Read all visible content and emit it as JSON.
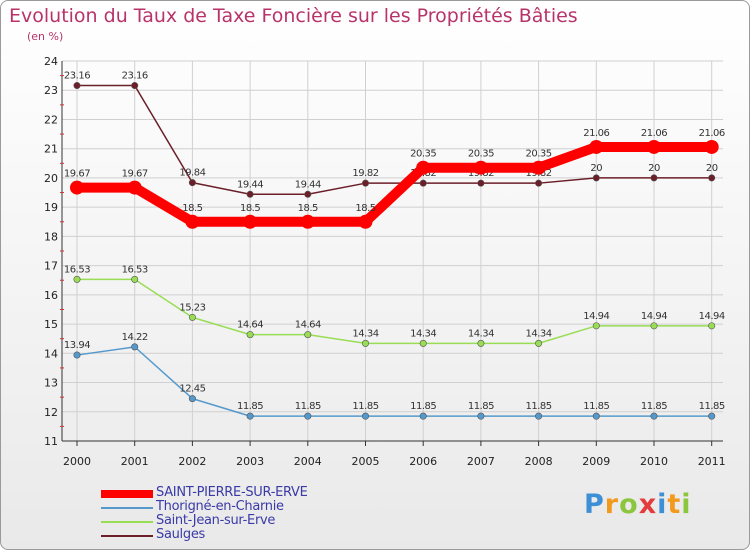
{
  "chart_data": {
    "type": "line",
    "title": "Evolution du Taux de Taxe Foncière sur les Propriétés Bâties",
    "subtitle": "(en %)",
    "xlabel": "",
    "ylabel": "",
    "ylim": [
      11,
      24
    ],
    "yticks": [
      "11",
      "12",
      "13",
      "14",
      "15",
      "16",
      "17",
      "18",
      "19",
      "20",
      "21",
      "22",
      "23",
      "24"
    ],
    "categories": [
      "2000",
      "2001",
      "2002",
      "2003",
      "2004",
      "2005",
      "2006",
      "2007",
      "2008",
      "2009",
      "2010",
      "2011"
    ],
    "series": [
      {
        "name": "Saulges",
        "color": "#6b1f28",
        "values": [
          23.16,
          23.16,
          19.84,
          19.44,
          19.44,
          19.82,
          19.82,
          19.82,
          19.82,
          20,
          20,
          20
        ],
        "labels": [
          "23.16",
          "23.16",
          "19.84",
          "19.44",
          "19.44",
          "19.82",
          "19.82",
          "19.82",
          "19.82",
          "20",
          "20",
          "20"
        ]
      },
      {
        "name": "Saint-Jean-sur-Erve",
        "color": "#99dd55",
        "values": [
          16.53,
          16.53,
          15.23,
          14.64,
          14.64,
          14.34,
          14.34,
          14.34,
          14.34,
          14.94,
          14.94,
          14.94
        ],
        "labels": [
          "16.53",
          "16.53",
          "15.23",
          "14.64",
          "14.64",
          "14.34",
          "14.34",
          "14.34",
          "14.34",
          "14.94",
          "14.94",
          "14.94"
        ]
      },
      {
        "name": "Thorigné-en-Charnie",
        "color": "#5599cc",
        "values": [
          13.94,
          14.22,
          12.45,
          11.85,
          11.85,
          11.85,
          11.85,
          11.85,
          11.85,
          11.85,
          11.85,
          11.85
        ],
        "labels": [
          "13.94",
          "14.22",
          "12.45",
          "11.85",
          "11.85",
          "11.85",
          "11.85",
          "11.85",
          "11.85",
          "11.85",
          "11.85",
          "11.85"
        ]
      },
      {
        "name": "SAINT-PIERRE-SUR-ERVE",
        "color": "#ff0000",
        "values": [
          19.67,
          19.67,
          18.5,
          18.5,
          18.5,
          18.5,
          20.35,
          20.35,
          20.35,
          21.06,
          21.06,
          21.06
        ],
        "labels": [
          "19.67",
          "19.67",
          "18.5",
          "18.5",
          "18.5",
          "18.5",
          "20.35",
          "20.35",
          "20.35",
          "21.06",
          "21.06",
          "21.06"
        ]
      }
    ],
    "legend": [
      "SAINT-PIERRE-SUR-ERVE",
      "Thorigné-en-Charnie",
      "Saint-Jean-sur-Erve",
      "Saulges"
    ],
    "legend_position": "bottom-left"
  },
  "logo": {
    "letters": [
      {
        "ch": "P",
        "color": "#3d8fd6"
      },
      {
        "ch": "r",
        "color": "#f29a1d"
      },
      {
        "ch": "o",
        "color": "#8cc63f"
      },
      {
        "ch": "x",
        "color": "#e43c3c"
      },
      {
        "ch": "i",
        "color": "#3d8fd6"
      },
      {
        "ch": "t",
        "color": "#f29a1d"
      },
      {
        "ch": "i",
        "color": "#8cc63f"
      }
    ]
  }
}
